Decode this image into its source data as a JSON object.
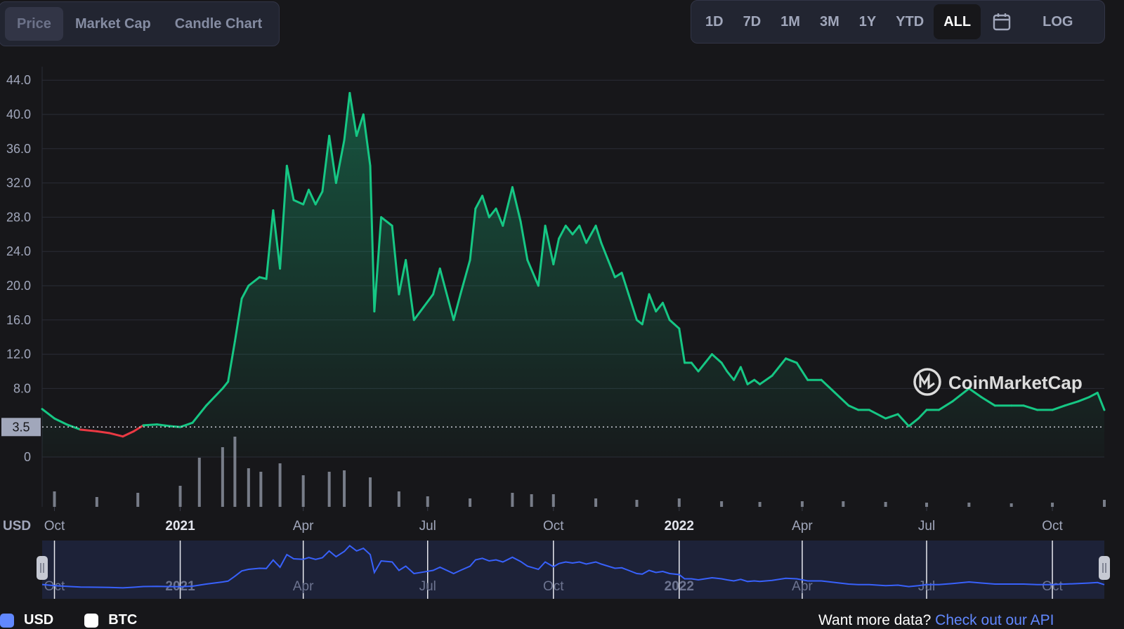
{
  "tabs": [
    {
      "label": "Price",
      "active": true
    },
    {
      "label": "Market Cap",
      "active": false
    },
    {
      "label": "Candle Chart",
      "active": false
    }
  ],
  "ranges": [
    "1D",
    "7D",
    "1M",
    "3M",
    "1Y",
    "YTD",
    "ALL"
  ],
  "active_range": "ALL",
  "calendar_icon": "calendar-icon",
  "log_label": "LOG",
  "watermark": "CoinMarketCap",
  "currency_unit": "USD",
  "current_price_label": "3.5",
  "legend": [
    {
      "label": "USD",
      "color": "#6188ff"
    },
    {
      "label": "BTC",
      "color": "#ffffff"
    }
  ],
  "api_text": "Want more data?",
  "api_link": "Check out our API",
  "colors": {
    "up": "#16c784",
    "down": "#ea3943",
    "navigator_line": "#3861fb",
    "background": "#17171a"
  },
  "chart_data": {
    "type": "area",
    "title": "",
    "xlabel": "",
    "ylabel": "",
    "ylim": [
      0,
      44
    ],
    "yticks": [
      0,
      8.0,
      12.0,
      16.0,
      20.0,
      24.0,
      28.0,
      32.0,
      36.0,
      40.0,
      44.0
    ],
    "ytick_labels": [
      "0",
      "8.0",
      "12.0",
      "16.0",
      "20.0",
      "24.0",
      "28.0",
      "32.0",
      "36.0",
      "40.0",
      "44.0"
    ],
    "xticks": [
      {
        "label": "Oct",
        "year": false
      },
      {
        "label": "2021",
        "year": true
      },
      {
        "label": "Apr",
        "year": false
      },
      {
        "label": "Jul",
        "year": false
      },
      {
        "label": "Oct",
        "year": false
      },
      {
        "label": "2022",
        "year": true
      },
      {
        "label": "Apr",
        "year": false
      },
      {
        "label": "Jul",
        "year": false
      },
      {
        "label": "Oct",
        "year": false
      }
    ],
    "xtick_dates": [
      "2020-10-01",
      "2021-01-01",
      "2021-04-01",
      "2021-07-01",
      "2021-10-01",
      "2022-01-01",
      "2022-04-01",
      "2022-07-01",
      "2022-10-01"
    ],
    "x_range": [
      "2020-09-22",
      "2022-11-08"
    ],
    "reference_price": 3.5,
    "grid": true,
    "legend_position": "bottom-left",
    "series": [
      {
        "name": "USD",
        "dates": [
          "2020-09-22",
          "2020-10-01",
          "2020-10-10",
          "2020-10-20",
          "2020-11-01",
          "2020-11-10",
          "2020-11-20",
          "2020-11-28",
          "2020-12-05",
          "2020-12-15",
          "2020-12-25",
          "2021-01-01",
          "2021-01-10",
          "2021-01-20",
          "2021-02-01",
          "2021-02-05",
          "2021-02-10",
          "2021-02-15",
          "2021-02-20",
          "2021-02-28",
          "2021-03-05",
          "2021-03-10",
          "2021-03-15",
          "2021-03-20",
          "2021-03-25",
          "2021-04-01",
          "2021-04-05",
          "2021-04-10",
          "2021-04-15",
          "2021-04-20",
          "2021-04-25",
          "2021-05-01",
          "2021-05-05",
          "2021-05-10",
          "2021-05-15",
          "2021-05-20",
          "2021-05-23",
          "2021-05-28",
          "2021-06-05",
          "2021-06-10",
          "2021-06-15",
          "2021-06-21",
          "2021-06-28",
          "2021-07-05",
          "2021-07-10",
          "2021-07-20",
          "2021-07-25",
          "2021-08-01",
          "2021-08-05",
          "2021-08-10",
          "2021-08-15",
          "2021-08-20",
          "2021-08-25",
          "2021-09-01",
          "2021-09-07",
          "2021-09-12",
          "2021-09-20",
          "2021-09-25",
          "2021-10-01",
          "2021-10-05",
          "2021-10-10",
          "2021-10-15",
          "2021-10-20",
          "2021-10-25",
          "2021-11-01",
          "2021-11-05",
          "2021-11-10",
          "2021-11-15",
          "2021-11-20",
          "2021-11-25",
          "2021-12-01",
          "2021-12-05",
          "2021-12-10",
          "2021-12-15",
          "2021-12-20",
          "2021-12-25",
          "2022-01-01",
          "2022-01-05",
          "2022-01-10",
          "2022-01-15",
          "2022-01-20",
          "2022-01-25",
          "2022-02-01",
          "2022-02-05",
          "2022-02-10",
          "2022-02-15",
          "2022-02-20",
          "2022-02-25",
          "2022-03-01",
          "2022-03-10",
          "2022-03-20",
          "2022-03-28",
          "2022-04-05",
          "2022-04-15",
          "2022-04-25",
          "2022-05-05",
          "2022-05-12",
          "2022-05-20",
          "2022-06-01",
          "2022-06-10",
          "2022-06-18",
          "2022-06-25",
          "2022-07-01",
          "2022-07-10",
          "2022-07-20",
          "2022-08-01",
          "2022-08-10",
          "2022-08-20",
          "2022-09-01",
          "2022-09-10",
          "2022-09-20",
          "2022-10-01",
          "2022-10-10",
          "2022-10-20",
          "2022-10-28",
          "2022-11-03",
          "2022-11-08"
        ],
        "values": [
          5.6,
          4.5,
          3.8,
          3.2,
          3.0,
          2.8,
          2.4,
          3.0,
          3.7,
          3.8,
          3.6,
          3.5,
          4.0,
          6.0,
          8.0,
          8.8,
          13.5,
          18.5,
          20.0,
          21.0,
          20.8,
          28.8,
          22.0,
          34.0,
          30.0,
          29.5,
          31.2,
          29.5,
          31.0,
          37.5,
          32.0,
          37.0,
          42.5,
          37.5,
          40.0,
          34.0,
          17.0,
          28.0,
          27.0,
          19.0,
          23.0,
          16.0,
          17.5,
          19.0,
          22.0,
          16.0,
          19.0,
          23.0,
          29.0,
          30.5,
          28.0,
          29.0,
          27.0,
          31.5,
          27.5,
          23.0,
          20.0,
          27.0,
          22.5,
          25.5,
          27.0,
          26.0,
          27.0,
          25.0,
          27.0,
          25.0,
          23.0,
          21.0,
          21.5,
          19.0,
          16.0,
          15.5,
          19.0,
          17.0,
          18.0,
          16.0,
          15.0,
          11.0,
          11.0,
          10.0,
          11.0,
          12.0,
          11.0,
          10.0,
          9.0,
          10.5,
          8.5,
          9.0,
          8.5,
          9.5,
          11.5,
          11.0,
          9.0,
          9.0,
          7.5,
          6.0,
          5.5,
          5.5,
          4.5,
          5.0,
          3.6,
          4.5,
          5.5,
          5.5,
          6.5,
          8.0,
          7.0,
          6.0,
          6.0,
          6.0,
          5.5,
          5.5,
          6.0,
          6.5,
          7.0,
          7.5,
          5.5
        ]
      }
    ],
    "volume": {
      "name": "Volume",
      "description": "relative volume bars (0-1 scale, unlabeled axis)",
      "dates": [
        "2020-10-01",
        "2020-11-01",
        "2020-12-01",
        "2021-01-01",
        "2021-01-15",
        "2021-02-01",
        "2021-02-10",
        "2021-02-20",
        "2021-03-01",
        "2021-03-15",
        "2021-04-01",
        "2021-04-20",
        "2021-05-01",
        "2021-05-20",
        "2021-06-10",
        "2021-07-01",
        "2021-08-01",
        "2021-09-01",
        "2021-09-15",
        "2021-10-01",
        "2021-11-01",
        "2021-12-01",
        "2022-01-01",
        "2022-02-01",
        "2022-03-01",
        "2022-04-01",
        "2022-05-01",
        "2022-06-01",
        "2022-07-01",
        "2022-08-01",
        "2022-09-01",
        "2022-10-01",
        "2022-11-08"
      ],
      "values": [
        0.22,
        0.14,
        0.2,
        0.3,
        0.7,
        0.85,
        1.0,
        0.55,
        0.5,
        0.62,
        0.45,
        0.5,
        0.52,
        0.42,
        0.22,
        0.15,
        0.12,
        0.2,
        0.18,
        0.18,
        0.12,
        0.1,
        0.12,
        0.08,
        0.07,
        0.08,
        0.08,
        0.07,
        0.06,
        0.06,
        0.05,
        0.06,
        0.1
      ]
    },
    "navigator": {
      "labels": [
        "Oct",
        "2021",
        "Apr",
        "Jul",
        "Oct",
        "2022",
        "Apr",
        "Jul",
        "Oct"
      ]
    }
  }
}
